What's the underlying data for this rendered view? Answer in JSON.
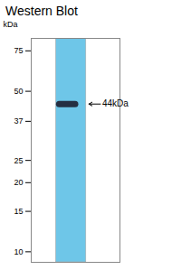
{
  "chart_data": {
    "type": "blot",
    "title": "Western Blot",
    "y_label": "kDa",
    "log": "y",
    "ylim": [
      9,
      85
    ],
    "yticks": [
      75,
      50,
      37,
      25,
      20,
      15,
      10
    ],
    "values": [
      44
    ],
    "value_labels": [
      "44kDa"
    ],
    "data_labels": true,
    "color": "#1a1a2a",
    "grid": false
  }
}
